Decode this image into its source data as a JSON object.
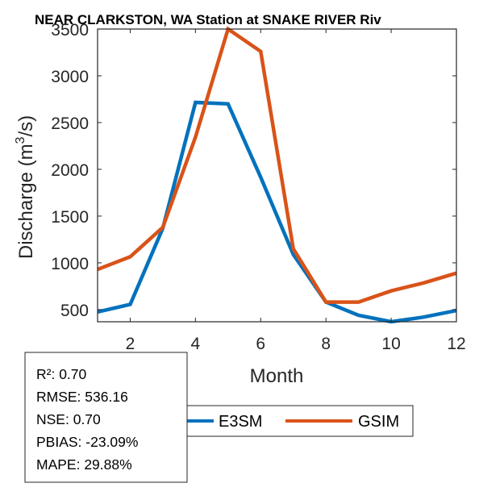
{
  "chart_data": {
    "type": "line",
    "title": "NEAR CLARKSTON, WA  Station at  SNAKE RIVER  Riv",
    "xlabel": "Month",
    "ylabel": "Discharge (m",
    "ylabel_sup": "3",
    "ylabel_tail": "/s)",
    "x": [
      1,
      2,
      3,
      4,
      5,
      6,
      7,
      8,
      9,
      10,
      11,
      12
    ],
    "xlim": [
      1,
      12
    ],
    "ylim": [
      370,
      3500
    ],
    "xticks": [
      2,
      4,
      6,
      8,
      10,
      12
    ],
    "xtick_labels": [
      "2",
      "4",
      "6",
      "8",
      "10",
      "12"
    ],
    "yticks": [
      500,
      1000,
      1500,
      2000,
      2500,
      3000,
      3500
    ],
    "ytick_labels": [
      "500",
      "1000",
      "1500",
      "2000",
      "2500",
      "3000",
      "3500"
    ],
    "grid": false,
    "series": [
      {
        "name": "E3SM",
        "color": "#0072BD",
        "values": [
          475,
          555,
          1370,
          2715,
          2700,
          1915,
          1090,
          580,
          440,
          370,
          420,
          490
        ]
      },
      {
        "name": "GSIM",
        "color": "#D95319",
        "values": [
          930,
          1065,
          1380,
          2345,
          3500,
          3260,
          1150,
          580,
          580,
          700,
          786,
          890
        ]
      }
    ],
    "legend": {
      "placement": "bottom-center",
      "orientation": "horizontal",
      "entries": [
        "E3SM",
        "GSIM"
      ]
    },
    "annotation": {
      "placement": "bottom-left",
      "lines": [
        "R²: 0.70",
        "RMSE: 536.16",
        "NSE: 0.70",
        "PBIAS: -23.09%",
        "MAPE: 29.88%"
      ]
    }
  }
}
